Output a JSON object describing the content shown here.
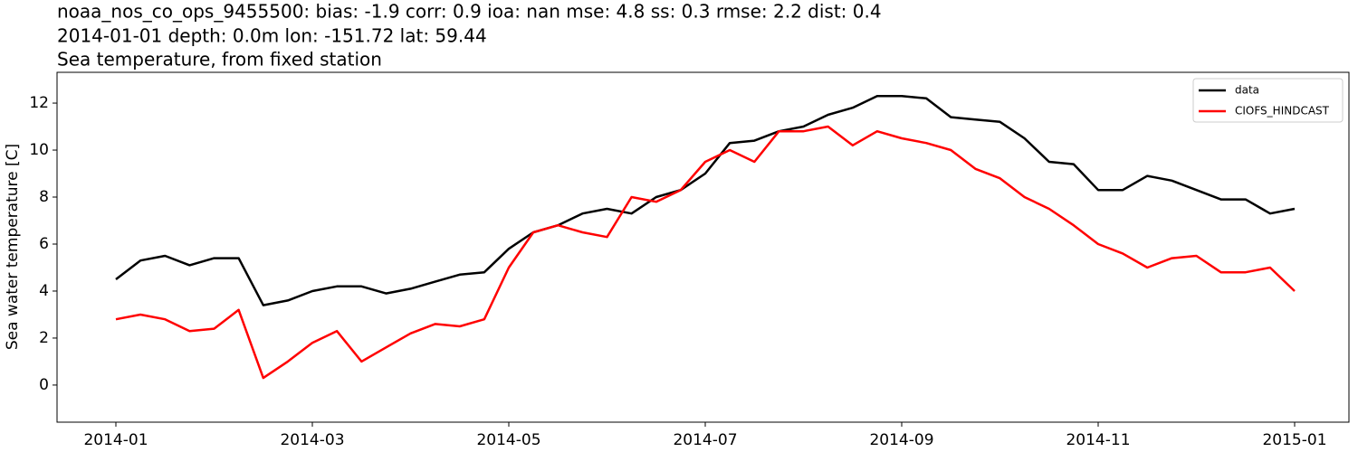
{
  "chart_data": {
    "type": "line",
    "title": [
      "noaa_nos_co_ops_9455500: bias: -1.9  corr: 0.9  ioa: nan  mse: 4.8  ss: 0.3  rmse: 2.2  dist: 0.4",
      "2014-01-01 depth: 0.0m lon: -151.72 lat: 59.44",
      "Sea temperature, from fixed station"
    ],
    "ylabel": "Sea water temperature [C]",
    "x": [
      "2014-01",
      null,
      null,
      null,
      null,
      null,
      null,
      null,
      "2014-03",
      null,
      null,
      null,
      null,
      null,
      null,
      null,
      "2014-05",
      null,
      null,
      null,
      null,
      null,
      null,
      null,
      "2014-07",
      null,
      null,
      null,
      null,
      null,
      null,
      null,
      "2014-09",
      null,
      null,
      null,
      null,
      null,
      null,
      null,
      "2014-11",
      null,
      null,
      null,
      null,
      null,
      null,
      null,
      "2015-01"
    ],
    "series": [
      {
        "name": "data",
        "color": "#000000",
        "values": [
          4.5,
          5.3,
          5.5,
          5.1,
          5.4,
          5.4,
          3.4,
          3.6,
          4.0,
          4.2,
          4.2,
          3.9,
          4.1,
          4.4,
          4.7,
          4.8,
          5.8,
          6.5,
          6.8,
          7.3,
          7.5,
          7.3,
          8.0,
          8.3,
          9.0,
          10.3,
          10.4,
          10.8,
          11.0,
          11.5,
          11.8,
          12.3,
          12.3,
          12.2,
          11.4,
          11.3,
          11.2,
          10.5,
          9.5,
          9.4,
          8.3,
          8.3,
          8.9,
          8.7,
          8.3,
          7.9,
          7.9,
          7.3,
          7.5
        ]
      },
      {
        "name": "CIOFS_HINDCAST",
        "color": "#ff0000",
        "values": [
          2.8,
          3.0,
          2.8,
          2.3,
          2.4,
          3.2,
          0.3,
          1.0,
          1.8,
          2.3,
          1.0,
          1.6,
          2.2,
          2.6,
          2.5,
          2.8,
          5.0,
          6.5,
          6.8,
          6.5,
          6.3,
          8.0,
          7.8,
          8.3,
          9.5,
          10.0,
          9.5,
          10.8,
          10.8,
          11.0,
          10.2,
          10.8,
          10.5,
          10.3,
          10.0,
          9.2,
          8.8,
          8.0,
          7.5,
          6.8,
          6.0,
          5.6,
          5.0,
          5.4,
          5.5,
          4.8,
          4.8,
          5.0,
          4.0
        ]
      }
    ],
    "ylim": [
      -1.58,
      13.31
    ],
    "yticks": [
      0,
      2,
      4,
      6,
      8,
      10,
      12
    ],
    "legend": "upper right"
  }
}
